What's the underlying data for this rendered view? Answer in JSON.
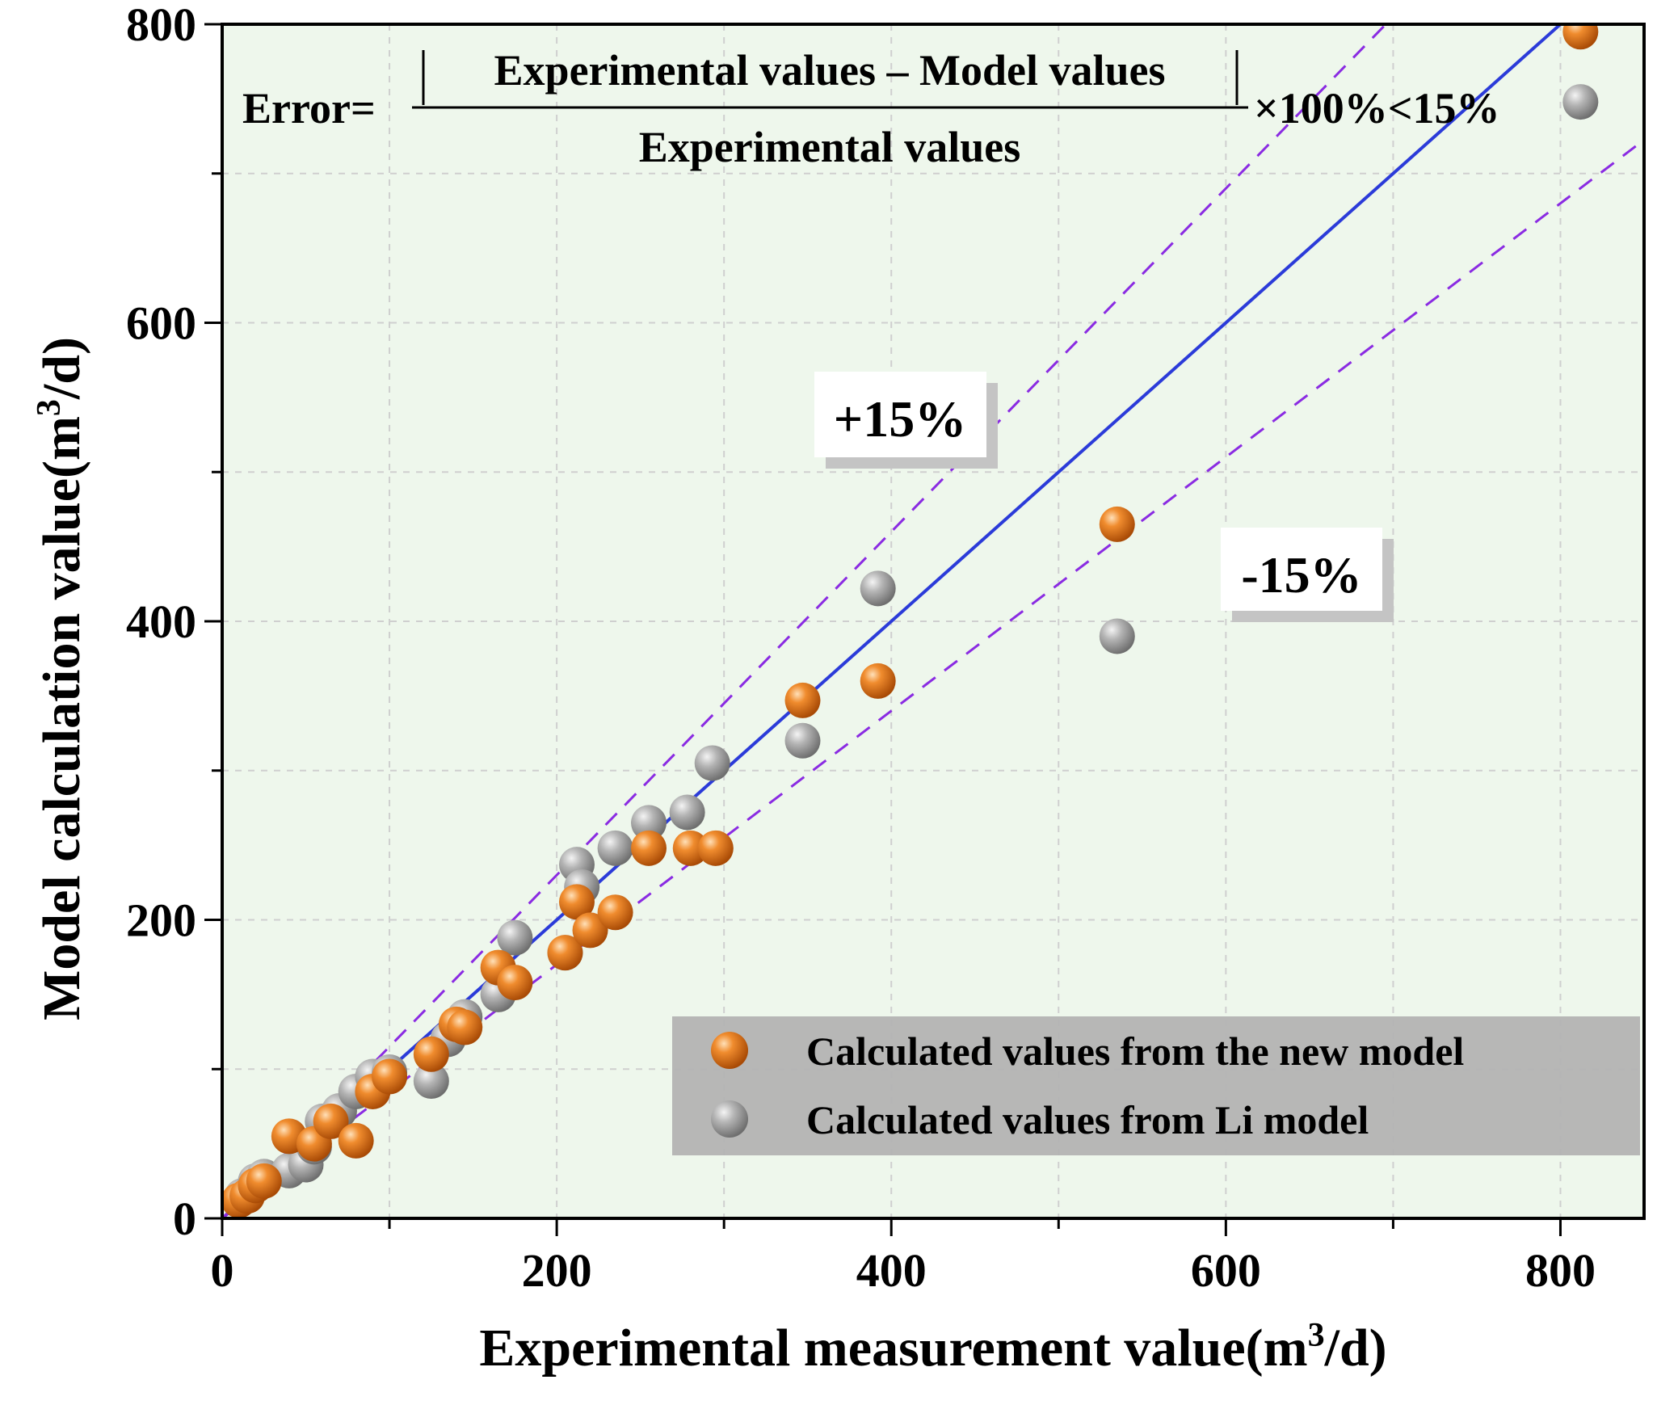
{
  "chart_data": {
    "type": "scatter",
    "title": "",
    "xlabel": "Experimental measurement value(m³/d)",
    "ylabel": "Model calculation value(m³/d)",
    "xlabel_parts": {
      "main": "Experimental measurement value(m",
      "sup": "3",
      "tail": "/d)"
    },
    "ylabel_parts": {
      "main": "Model calculation value(m",
      "sup": "3",
      "tail": "/d)"
    },
    "xlim": [
      0,
      850
    ],
    "ylim": [
      0,
      800
    ],
    "x_ticks": [
      0,
      200,
      400,
      600,
      800
    ],
    "y_ticks": [
      0,
      200,
      400,
      600,
      800
    ],
    "x_tick_labels": [
      "0",
      "200",
      "400",
      "600",
      "800"
    ],
    "y_tick_labels": [
      "0",
      "200",
      "400",
      "600",
      "800"
    ],
    "grid": true,
    "reference_lines": [
      {
        "name": "y = x",
        "slope": 1.0,
        "style": "solid",
        "color": "#2b3bd9"
      },
      {
        "name": "+15%",
        "slope": 1.15,
        "style": "dashed",
        "color": "#8a2be2"
      },
      {
        "name": "-15%",
        "slope": 0.85,
        "style": "dashed",
        "color": "#8a2be2"
      }
    ],
    "annotations": {
      "formula_lhs": "Error=",
      "formula_numerator": "Experimental values – Model  values",
      "formula_denominator": "Experimental  values",
      "formula_rhs": "×100%<15%",
      "plus_band": "+15%",
      "minus_band": "-15%"
    },
    "legend_position": "bottom-right",
    "series": [
      {
        "name": "Calculated values from the new model",
        "color": "#e0731a",
        "points": [
          [
            10,
            12
          ],
          [
            15,
            15
          ],
          [
            20,
            22
          ],
          [
            25,
            25
          ],
          [
            40,
            55
          ],
          [
            55,
            50
          ],
          [
            65,
            65
          ],
          [
            80,
            52
          ],
          [
            90,
            85
          ],
          [
            100,
            95
          ],
          [
            125,
            110
          ],
          [
            140,
            130
          ],
          [
            145,
            128
          ],
          [
            165,
            168
          ],
          [
            175,
            158
          ],
          [
            205,
            178
          ],
          [
            212,
            212
          ],
          [
            220,
            193
          ],
          [
            235,
            205
          ],
          [
            255,
            248
          ],
          [
            280,
            248
          ],
          [
            295,
            248
          ],
          [
            347,
            347
          ],
          [
            392,
            360
          ],
          [
            535,
            465
          ],
          [
            812,
            795
          ]
        ]
      },
      {
        "name": "Calculated values from Li model",
        "color": "#a9a9a9",
        "points": [
          [
            12,
            15
          ],
          [
            20,
            25
          ],
          [
            25,
            28
          ],
          [
            40,
            32
          ],
          [
            50,
            36
          ],
          [
            55,
            48
          ],
          [
            60,
            65
          ],
          [
            70,
            72
          ],
          [
            80,
            85
          ],
          [
            90,
            95
          ],
          [
            100,
            98
          ],
          [
            125,
            92
          ],
          [
            135,
            120
          ],
          [
            145,
            135
          ],
          [
            165,
            150
          ],
          [
            175,
            188
          ],
          [
            205,
            178
          ],
          [
            212,
            237
          ],
          [
            215,
            222
          ],
          [
            235,
            248
          ],
          [
            255,
            265
          ],
          [
            278,
            272
          ],
          [
            293,
            305
          ],
          [
            347,
            320
          ],
          [
            392,
            422
          ],
          [
            535,
            390
          ],
          [
            812,
            748
          ]
        ]
      }
    ]
  }
}
